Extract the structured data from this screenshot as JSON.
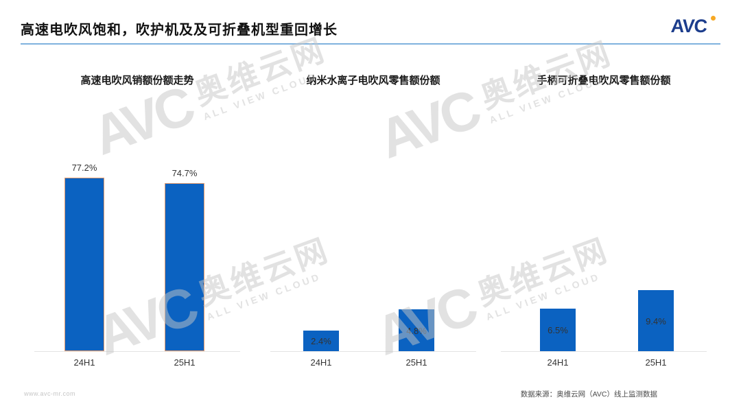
{
  "header": {
    "title": "高速电吹风饱和，吹护机及及可折叠机型重回增长",
    "logo_text": "AVC"
  },
  "watermark": {
    "avc": "AVC",
    "cn": "奥维云网",
    "en": "ALL VIEW CLOUD"
  },
  "chart_data": [
    {
      "type": "bar",
      "title": "高速电吹风销额份额走势",
      "categories": [
        "24H1",
        "25H1"
      ],
      "values": [
        77.2,
        74.7
      ],
      "labels": [
        "77.2%",
        "74.7%"
      ],
      "unit": "%",
      "ylim": [
        0,
        80
      ],
      "grid": false,
      "legend": "none",
      "label_position": "top",
      "bar_color": "#0B62C1",
      "bar_border_color": "#E49B6D"
    },
    {
      "type": "bar",
      "title": "纳米水离子电吹风零售额份额",
      "categories": [
        "24H1",
        "25H1"
      ],
      "values": [
        2.4,
        4.8
      ],
      "labels": [
        "2.4%",
        "4.8%"
      ],
      "unit": "%",
      "ylim": [
        0,
        20
      ],
      "grid": false,
      "legend": "none",
      "label_position": "inside",
      "bar_color": "#0B62C1",
      "bar_border_color": null
    },
    {
      "type": "bar",
      "title": "手柄可折叠电吹风零售额份额",
      "categories": [
        "24H1",
        "25H1"
      ],
      "values": [
        6.5,
        9.4
      ],
      "labels": [
        "6.5%",
        "9.4%"
      ],
      "unit": "%",
      "ylim": [
        0,
        28
      ],
      "grid": false,
      "legend": "none",
      "label_position": "inside",
      "bar_color": "#0B62C1",
      "bar_border_color": null
    }
  ],
  "footer": {
    "website": "www.avc-mr.com",
    "data_source": "数据来源：奥维云网（AVC）线上监测数据"
  },
  "colors": {
    "bar_blue": "#0B62C1",
    "bar_border_orange": "#E49B6D",
    "title_underline_blue": "#7FB2DE",
    "logo_navy": "#1C3D8C",
    "logo_dot_orange": "#F7A823",
    "axis_line_gray": "#E3E3E3",
    "label_text": "#333333"
  }
}
